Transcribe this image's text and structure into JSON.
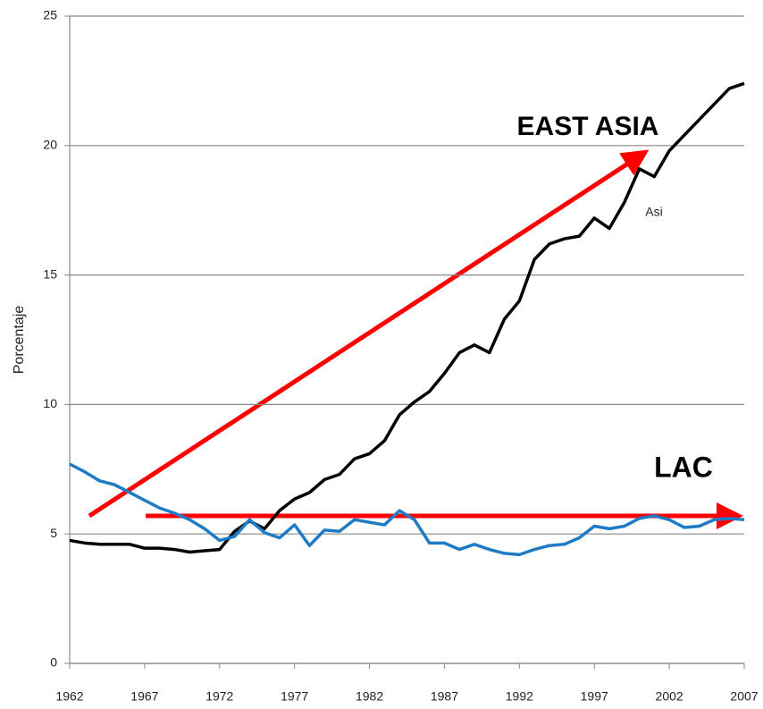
{
  "chart_data": {
    "type": "line",
    "y_label": "Porcentaje",
    "annotations": [
      "EAST ASIA",
      "LAC"
    ],
    "x": [
      1962,
      1963,
      1964,
      1965,
      1966,
      1967,
      1968,
      1969,
      1970,
      1971,
      1972,
      1973,
      1974,
      1975,
      1976,
      1977,
      1978,
      1979,
      1980,
      1981,
      1982,
      1983,
      1984,
      1985,
      1986,
      1987,
      1988,
      1989,
      1990,
      1991,
      1992,
      1993,
      1994,
      1995,
      1996,
      1997,
      1998,
      1999,
      2000,
      2001,
      2002,
      2003,
      2004,
      2005,
      2006,
      2007
    ],
    "series": [
      {
        "name": "Asi",
        "color": "#000000",
        "values": [
          4.75,
          4.65,
          4.6,
          4.6,
          4.6,
          4.45,
          4.45,
          4.4,
          4.3,
          4.35,
          4.4,
          5.1,
          5.5,
          5.2,
          5.9,
          6.35,
          6.6,
          7.1,
          7.3,
          7.9,
          8.1,
          8.6,
          9.6,
          10.1,
          10.5,
          11.2,
          12.0,
          12.3,
          12.0,
          13.3,
          14.0,
          15.6,
          16.2,
          16.4,
          16.5,
          17.2,
          16.8,
          17.8,
          19.1,
          18.8,
          19.8,
          20.4,
          21.0,
          21.6,
          22.2,
          22.4
        ]
      },
      {
        "color": "#1f7bc4",
        "values": [
          7.7,
          7.4,
          7.05,
          6.9,
          6.6,
          6.3,
          6.0,
          5.8,
          5.55,
          5.2,
          4.75,
          4.9,
          5.55,
          5.05,
          4.85,
          5.35,
          4.55,
          5.15,
          5.1,
          5.55,
          5.45,
          5.35,
          5.9,
          5.55,
          4.65,
          4.65,
          4.4,
          4.6,
          4.4,
          4.25,
          4.2,
          4.4,
          4.55,
          4.6,
          4.85,
          5.3,
          5.2,
          5.3,
          5.6,
          5.7,
          5.55,
          5.25,
          5.3,
          5.55,
          5.6,
          5.55
        ]
      }
    ],
    "xlim": [
      1962,
      2007
    ],
    "xticks": [
      1962,
      1967,
      1972,
      1977,
      1982,
      1987,
      1992,
      1997,
      2002,
      2007
    ],
    "ylim": [
      0,
      25
    ],
    "yticks": [
      0,
      5,
      10,
      15,
      20,
      25
    ],
    "grid": true
  }
}
